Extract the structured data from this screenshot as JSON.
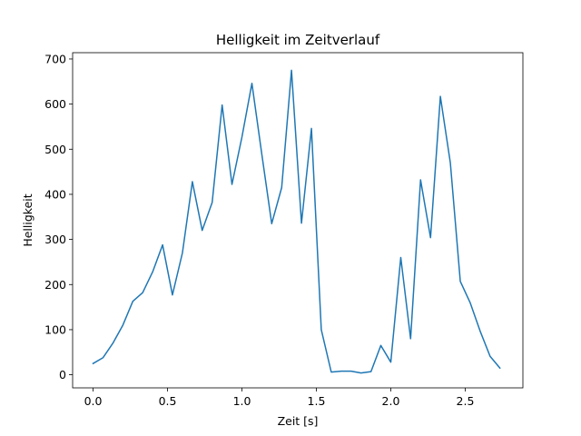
{
  "chart_data": {
    "type": "line",
    "title": "Helligkeit im Zeitverlauf",
    "xlabel": "Zeit [s]",
    "ylabel": "Helligkeit",
    "xlim": [
      -0.1375,
      2.8875
    ],
    "ylim": [
      -29,
      714
    ],
    "x_ticks": [
      0.0,
      0.5,
      1.0,
      1.5,
      2.0,
      2.5
    ],
    "x_tick_labels": [
      "0.0",
      "0.5",
      "1.0",
      "1.5",
      "2.0",
      "2.5"
    ],
    "y_ticks": [
      0,
      100,
      200,
      300,
      400,
      500,
      600,
      700
    ],
    "y_tick_labels": [
      "0",
      "100",
      "200",
      "300",
      "400",
      "500",
      "600",
      "700"
    ],
    "grid": false,
    "series": [
      {
        "name": "Helligkeit",
        "color": "#1f77b4",
        "x": [
          0.0,
          0.067,
          0.133,
          0.2,
          0.267,
          0.333,
          0.4,
          0.467,
          0.533,
          0.6,
          0.667,
          0.733,
          0.8,
          0.867,
          0.933,
          1.0,
          1.067,
          1.133,
          1.2,
          1.267,
          1.333,
          1.4,
          1.467,
          1.533,
          1.6,
          1.667,
          1.733,
          1.8,
          1.867,
          1.933,
          2.0,
          2.067,
          2.133,
          2.2,
          2.267,
          2.333,
          2.4,
          2.467,
          2.533,
          2.6,
          2.667,
          2.733
        ],
        "values": [
          25,
          38,
          70,
          110,
          163,
          182,
          228,
          288,
          177,
          270,
          428,
          320,
          382,
          598,
          422,
          527,
          646,
          490,
          335,
          415,
          675,
          336,
          546,
          100,
          6,
          8,
          8,
          4,
          7,
          65,
          28,
          260,
          80,
          432,
          304,
          617,
          470,
          207,
          160,
          97,
          41,
          15
        ]
      }
    ]
  }
}
